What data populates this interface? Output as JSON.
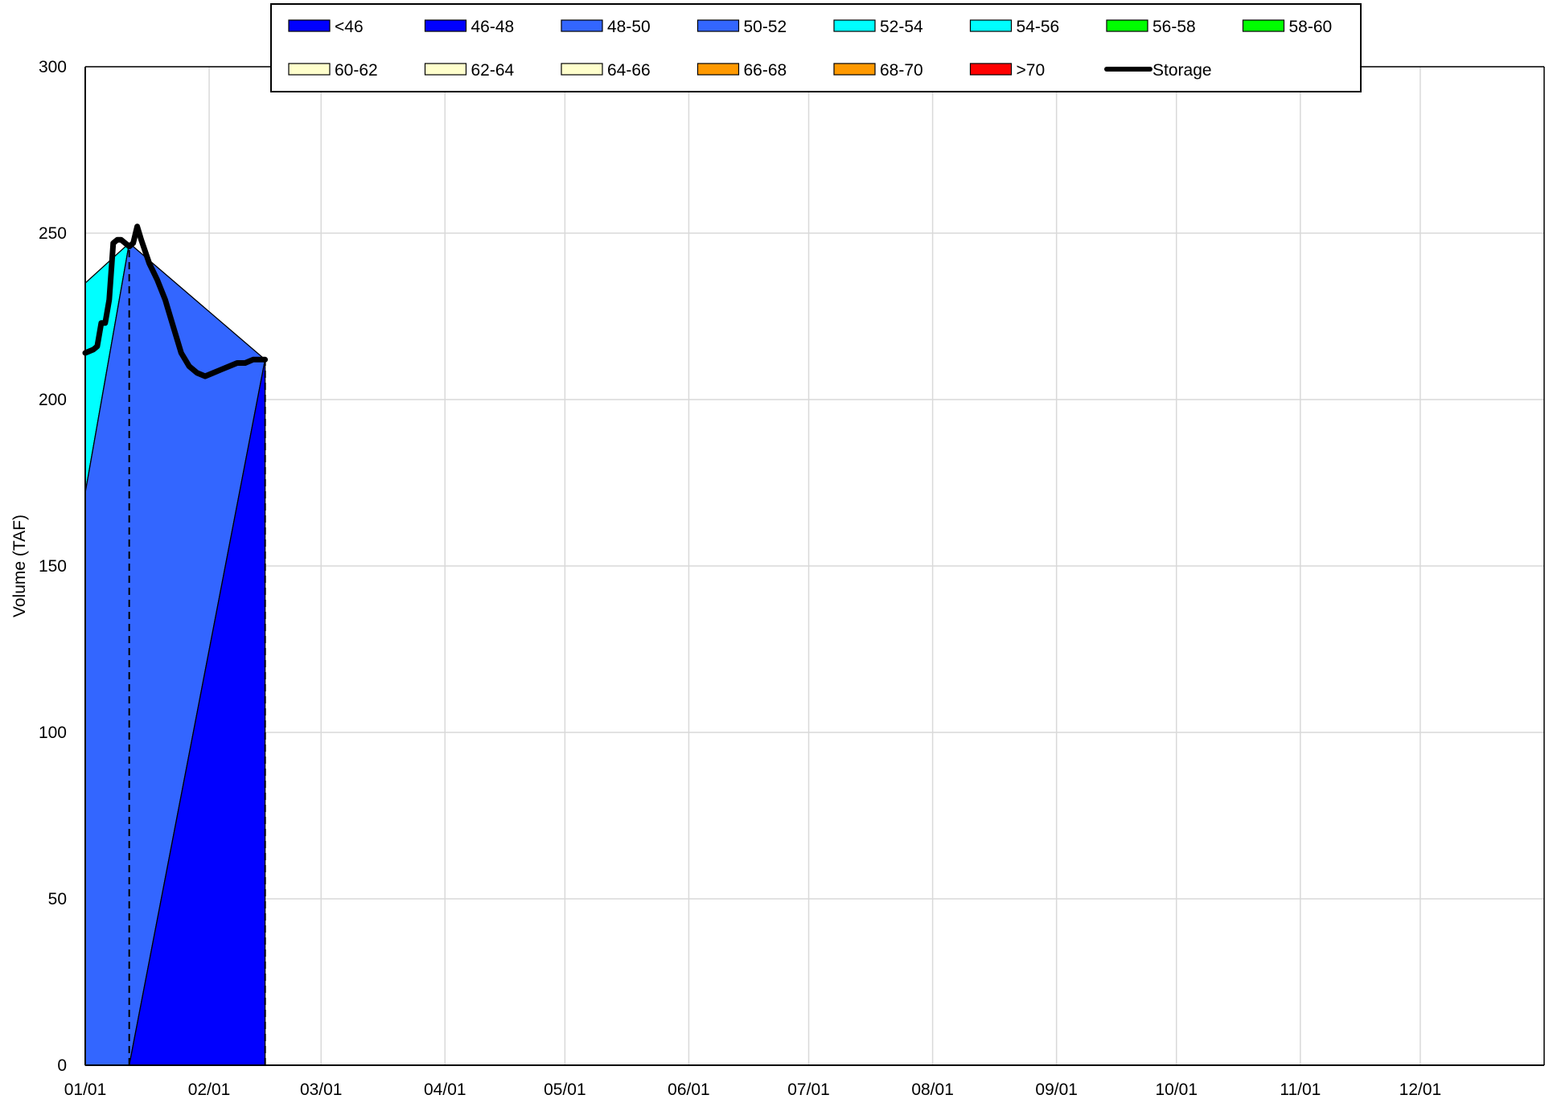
{
  "chart_data": {
    "type": "area",
    "title": "",
    "xlabel": "",
    "ylabel": "Volume (TAF)",
    "xlim": [
      "01/01",
      "12/31"
    ],
    "ylim": [
      0,
      300
    ],
    "y_ticks": [
      0,
      50,
      100,
      150,
      200,
      250,
      300
    ],
    "x_tick_labels": [
      "01/01",
      "02/01",
      "03/01",
      "04/01",
      "05/01",
      "06/01",
      "07/01",
      "08/01",
      "09/01",
      "10/01",
      "11/01",
      "12/01"
    ],
    "x_tick_days": [
      0,
      31,
      59,
      90,
      120,
      151,
      181,
      212,
      243,
      273,
      304,
      334
    ],
    "grid": true,
    "legend_position": "top",
    "legend": [
      {
        "name": "<46",
        "color": "#0000FF",
        "kind": "area"
      },
      {
        "name": "46-48",
        "color": "#0000FF",
        "kind": "area"
      },
      {
        "name": "48-50",
        "color": "#3366FF",
        "kind": "area"
      },
      {
        "name": "50-52",
        "color": "#3366FF",
        "kind": "area"
      },
      {
        "name": "52-54",
        "color": "#00FFFF",
        "kind": "area"
      },
      {
        "name": "54-56",
        "color": "#00FFFF",
        "kind": "area"
      },
      {
        "name": "56-58",
        "color": "#00FF00",
        "kind": "area"
      },
      {
        "name": "58-60",
        "color": "#00FF00",
        "kind": "area"
      },
      {
        "name": "60-62",
        "color": "#FFFFCC",
        "kind": "area"
      },
      {
        "name": "62-64",
        "color": "#FFFFCC",
        "kind": "area"
      },
      {
        "name": "64-66",
        "color": "#FFFFCC",
        "kind": "area"
      },
      {
        "name": "66-68",
        "color": "#FF9900",
        "kind": "area"
      },
      {
        "name": "68-70",
        "color": "#FF9900",
        "kind": "area"
      },
      {
        "name": ">70",
        "color": "#FF0000",
        "kind": "area"
      },
      {
        "name": "Storage",
        "color": "#000000",
        "kind": "line"
      }
    ],
    "areas": [
      {
        "band": "52-54",
        "color": "#00FFFF",
        "points": [
          [
            0,
            172
          ],
          [
            0,
            235
          ],
          [
            11,
            247
          ]
        ]
      },
      {
        "band": "48-50",
        "color": "#3366FF",
        "points": [
          [
            0,
            0
          ],
          [
            0,
            172
          ],
          [
            11,
            247
          ],
          [
            45,
            212
          ],
          [
            11,
            0
          ]
        ]
      },
      {
        "band": "<46",
        "color": "#0000FF",
        "points": [
          [
            11,
            0
          ],
          [
            45,
            212
          ],
          [
            45,
            0
          ]
        ]
      }
    ],
    "dashed_lines": [
      {
        "x": 11,
        "y_from": 0,
        "y_to": 247
      },
      {
        "x": 45,
        "y_from": 0,
        "y_to": 212
      }
    ],
    "storage": {
      "name": "Storage",
      "color": "#000000",
      "x": [
        0,
        2,
        3,
        4,
        5,
        6,
        7,
        8,
        9,
        10,
        11,
        12,
        13,
        14,
        16,
        18,
        20,
        22,
        24,
        26,
        28,
        30,
        32,
        34,
        36,
        38,
        40,
        42,
        45
      ],
      "y": [
        214,
        215,
        216,
        223,
        223,
        230,
        247,
        248,
        248,
        247,
        246,
        247,
        252,
        248,
        241,
        236,
        230,
        222,
        214,
        210,
        208,
        207,
        208,
        209,
        210,
        211,
        211,
        212,
        212
      ]
    }
  }
}
